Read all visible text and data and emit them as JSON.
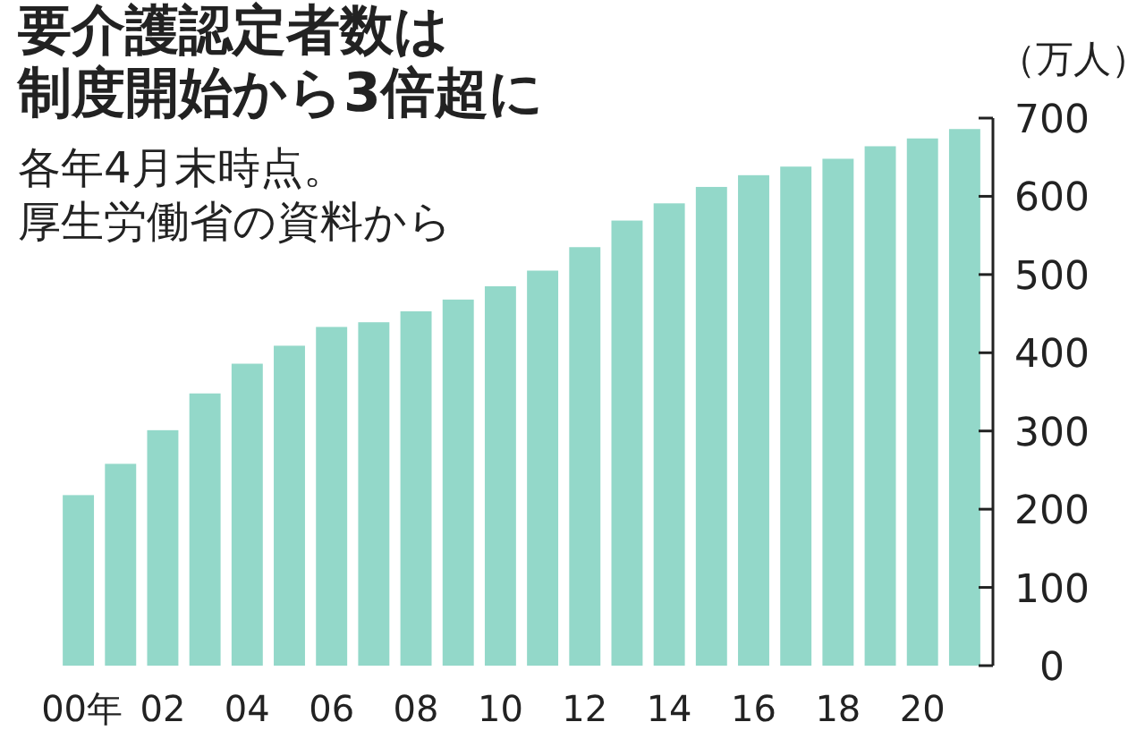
{
  "chart_data": {
    "type": "bar",
    "title": "要介護認定者数は",
    "subtitle": "制度開始から3倍超に",
    "annotations": [
      "各年4月末時点。",
      "厚生労働省の資料から"
    ],
    "ylabel": "（万人）",
    "categories": [
      "00年",
      null,
      "02",
      null,
      "04",
      null,
      "06",
      null,
      "08",
      null,
      "10",
      null,
      "12",
      null,
      "14",
      null,
      "16",
      null,
      "18",
      null,
      "20",
      null
    ],
    "values": [
      218,
      258,
      301,
      348,
      386,
      409,
      433,
      439,
      453,
      468,
      485,
      505,
      535,
      569,
      591,
      612,
      627,
      638,
      648,
      664,
      674,
      686
    ],
    "color": "#93d8c9",
    "ylim": [
      0,
      700
    ],
    "yticks": [
      0,
      100,
      200,
      300,
      400,
      500,
      600,
      700
    ]
  }
}
